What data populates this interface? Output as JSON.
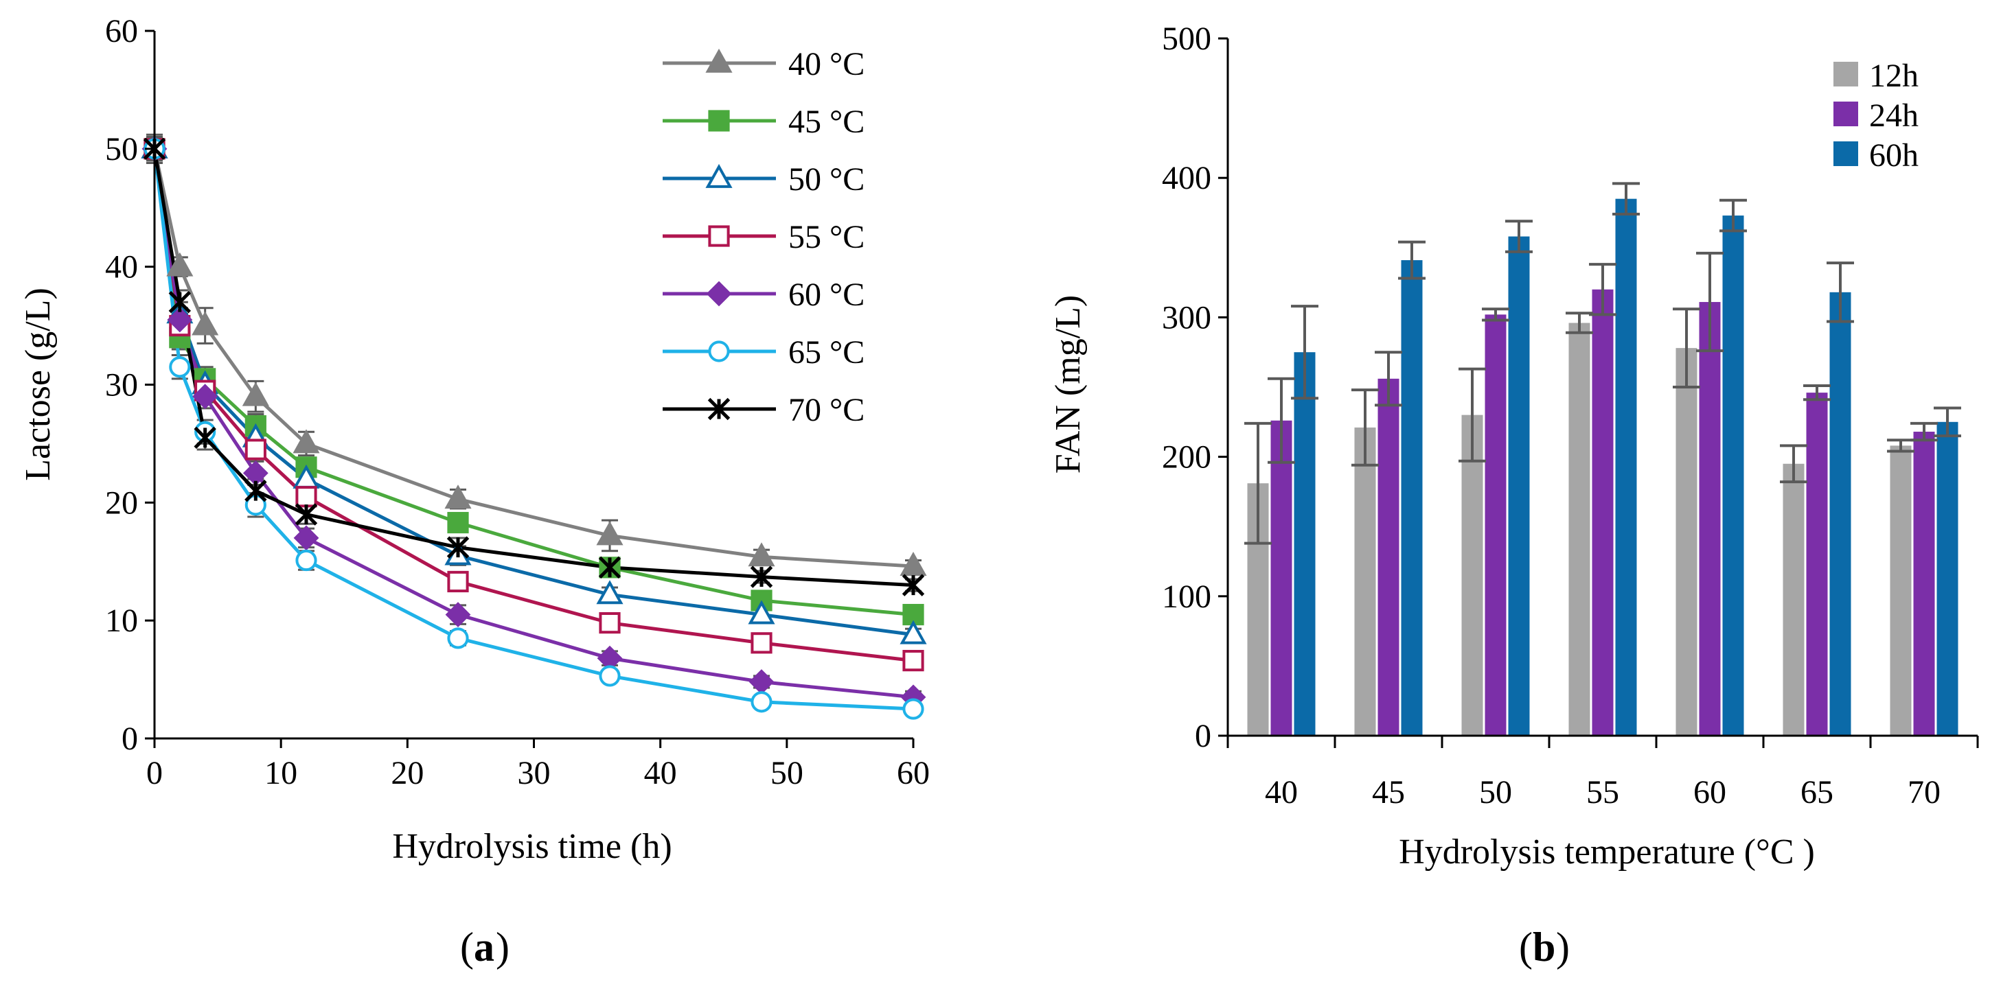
{
  "chart_data": [
    {
      "type": "line",
      "panel_label": "a",
      "xlabel": "Hydrolysis time (h)",
      "ylabel": "Lactose (g/L)",
      "xlim": [
        0,
        60
      ],
      "ylim": [
        0,
        60
      ],
      "xticks": [
        0,
        10,
        20,
        30,
        40,
        50,
        60
      ],
      "yticks": [
        0,
        10,
        20,
        30,
        40,
        50,
        60
      ],
      "legend_position": "top-right",
      "x": [
        0,
        2,
        4,
        8,
        12,
        24,
        36,
        48,
        60
      ],
      "series": [
        {
          "name": "40 °C",
          "color": "#808080",
          "marker": "triangle-filled",
          "values": [
            50,
            40,
            35,
            29,
            25,
            20.3,
            17.2,
            15.4,
            14.6
          ],
          "errors": [
            1.2,
            0.8,
            1.5,
            1.3,
            1.0,
            0.8,
            1.3,
            0.6,
            0.5
          ]
        },
        {
          "name": "45 °C",
          "color": "#4aa93d",
          "marker": "square-filled",
          "values": [
            50,
            34,
            30.5,
            26.5,
            23,
            18.3,
            14.5,
            11.7,
            10.5
          ],
          "errors": [
            1.0,
            1.0,
            1.0,
            1.0,
            0.8,
            0.8,
            0.6,
            0.5,
            0.5
          ]
        },
        {
          "name": "50 °C",
          "color": "#0b6aa8",
          "marker": "triangle-open",
          "values": [
            50,
            36,
            30,
            25.5,
            22,
            15.5,
            12.2,
            10.5,
            8.8
          ],
          "errors": [
            1.0,
            1.0,
            1.0,
            1.0,
            0.8,
            0.8,
            0.6,
            0.5,
            0.5
          ]
        },
        {
          "name": "55 °C",
          "color": "#b0154f",
          "marker": "square-open",
          "values": [
            50,
            35,
            29.5,
            24.5,
            20.5,
            13.3,
            9.8,
            8.1,
            6.6
          ],
          "errors": [
            1.0,
            1.0,
            1.0,
            1.0,
            0.8,
            0.8,
            0.6,
            0.5,
            0.5
          ]
        },
        {
          "name": "60 °C",
          "color": "#7b2fa8",
          "marker": "diamond-filled",
          "values": [
            50,
            35.5,
            29,
            22.5,
            17,
            10.5,
            6.8,
            4.8,
            3.5
          ],
          "errors": [
            1.0,
            1.0,
            1.0,
            1.0,
            0.8,
            0.8,
            0.6,
            0.5,
            0.5
          ]
        },
        {
          "name": "65 °C",
          "color": "#1fb2e8",
          "marker": "circle-open",
          "values": [
            50,
            31.5,
            26,
            19.8,
            15.1,
            8.5,
            5.3,
            3.1,
            2.5
          ],
          "errors": [
            1.0,
            1.0,
            1.0,
            1.0,
            0.8,
            0.6,
            0.5,
            0.4,
            0.4
          ]
        },
        {
          "name": "70 °C",
          "color": "#000000",
          "marker": "asterisk",
          "values": [
            50,
            37,
            25.5,
            21,
            19,
            16.2,
            14.5,
            13.7,
            13
          ],
          "errors": [
            1.0,
            1.0,
            1.0,
            1.0,
            0.8,
            0.8,
            0.6,
            0.5,
            0.5
          ]
        }
      ]
    },
    {
      "type": "bar",
      "panel_label": "b",
      "xlabel": "Hydrolysis temperature (°C )",
      "ylabel": "FAN (mg/L)",
      "ylim": [
        0,
        500
      ],
      "yticks": [
        0,
        100,
        200,
        300,
        400,
        500
      ],
      "legend_position": "top-right",
      "categories": [
        "40",
        "45",
        "50",
        "55",
        "60",
        "65",
        "70"
      ],
      "series": [
        {
          "name": "12h",
          "color": "#a6a6a6",
          "values": [
            181,
            221,
            230,
            296,
            278,
            195,
            208
          ],
          "errors": [
            43,
            27,
            33,
            7,
            28,
            13,
            4
          ]
        },
        {
          "name": "24h",
          "color": "#7b2fa8",
          "values": [
            226,
            256,
            302,
            320,
            311,
            246,
            218
          ],
          "errors": [
            30,
            19,
            4,
            18,
            35,
            5,
            6
          ]
        },
        {
          "name": "60h",
          "color": "#0b6aa8",
          "values": [
            275,
            341,
            358,
            385,
            373,
            318,
            225
          ],
          "errors": [
            33,
            13,
            11,
            11,
            11,
            21,
            10
          ]
        }
      ]
    }
  ]
}
